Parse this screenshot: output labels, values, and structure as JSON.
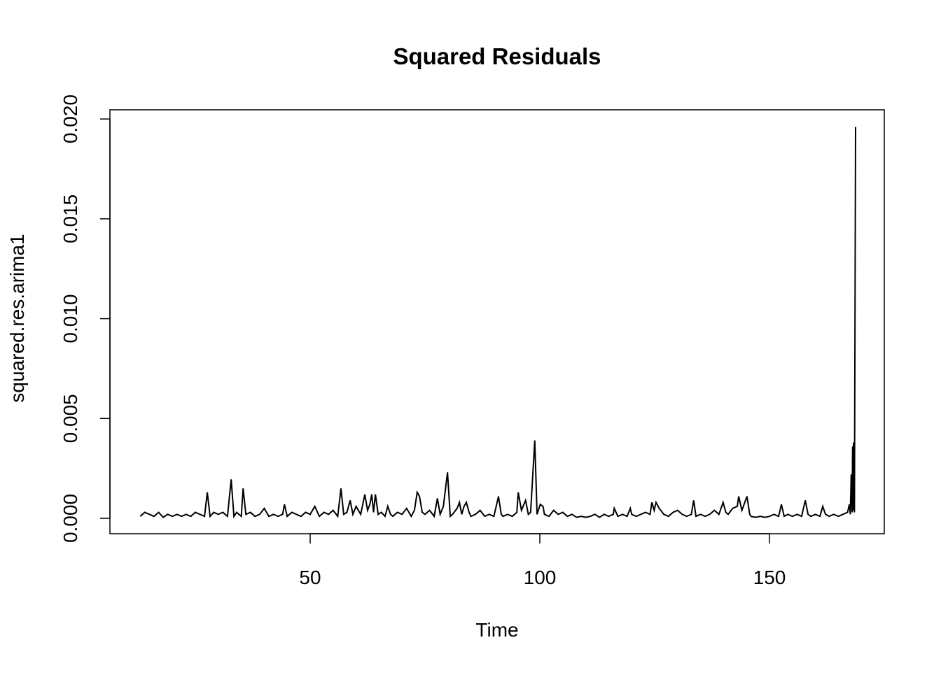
{
  "chart_data": {
    "type": "line",
    "title": "Squared Residuals",
    "x_label": "Time",
    "y_label": "squared.res.arima1",
    "color": "#000000",
    "x": [
      13,
      14,
      15,
      16,
      17,
      18,
      19,
      20,
      21,
      22,
      23,
      24,
      25,
      26,
      27,
      27.6,
      28.2,
      29,
      30,
      31,
      32,
      32.8,
      33.4,
      34,
      35,
      35.4,
      36,
      37,
      38,
      39,
      40,
      41,
      42,
      43,
      44,
      44.4,
      45,
      46,
      47,
      48,
      49,
      50,
      51,
      52,
      53,
      54,
      55,
      56,
      56.7,
      57.3,
      58,
      58.7,
      59.3,
      60,
      61,
      61.9,
      62.5,
      63,
      63.4,
      63.8,
      64.2,
      64.8,
      65.5,
      66.3,
      66.9,
      67.5,
      68,
      69,
      70,
      71,
      72,
      72.7,
      73.3,
      73.8,
      74.4,
      75,
      76,
      77,
      77.7,
      78.3,
      79,
      79.9,
      80.5,
      81,
      82,
      82.5,
      83,
      83.5,
      84,
      84.6,
      85,
      86,
      87,
      88,
      89,
      90,
      91,
      91.6,
      92,
      93,
      94,
      95,
      95.3,
      96,
      96.9,
      97.5,
      98,
      98.9,
      99.4,
      100.1,
      100.7,
      101,
      102,
      103,
      104,
      105,
      106,
      107,
      108,
      109,
      110,
      111,
      112,
      113,
      114,
      115,
      116,
      116.2,
      117,
      118,
      119,
      119.7,
      120,
      121,
      122,
      123,
      124,
      124.4,
      124.9,
      125.3,
      126,
      127,
      128,
      129,
      130,
      131,
      132,
      133,
      133.5,
      134,
      135,
      136,
      137,
      138,
      139,
      139.9,
      140.5,
      141,
      142,
      143,
      143.3,
      144,
      145.1,
      145.7,
      146,
      147,
      148,
      149,
      150,
      151,
      152,
      152.6,
      153.2,
      154,
      155,
      156,
      157,
      157.8,
      158.4,
      159,
      160,
      161,
      161.6,
      162.2,
      163,
      164,
      165,
      166,
      167,
      167.4,
      167.6,
      167.8,
      168,
      168.1,
      168.2,
      168.3,
      168.5,
      168.75
    ],
    "values": [
      0.0001,
      0.0003,
      0.0002,
      0.0001,
      0.0003,
      5e-05,
      0.0002,
      0.0001,
      0.0002,
      0.0001,
      0.0002,
      0.0001,
      0.0003,
      0.0002,
      0.0001,
      0.0013,
      0.0001,
      0.0003,
      0.0002,
      0.0003,
      0.0001,
      0.00195,
      0.0001,
      0.0003,
      0.0001,
      0.0015,
      0.0002,
      0.0003,
      0.0001,
      0.0002,
      0.0005,
      0.0001,
      0.0002,
      0.0001,
      0.0002,
      0.0007,
      0.0001,
      0.0003,
      0.0002,
      0.0001,
      0.0003,
      0.0002,
      0.0006,
      0.0001,
      0.0003,
      0.0002,
      0.0004,
      0.0001,
      0.0015,
      0.0002,
      0.0003,
      0.0009,
      0.0002,
      0.0006,
      0.0002,
      0.0012,
      0.0004,
      0.0007,
      0.0012,
      0.0003,
      0.0012,
      0.0002,
      0.0003,
      0.0001,
      0.0006,
      0.0002,
      0.0001,
      0.0003,
      0.0002,
      0.0005,
      0.0001,
      0.0004,
      0.0013,
      0.0011,
      0.0003,
      0.0002,
      0.0004,
      0.0001,
      0.001,
      0.0002,
      0.0006,
      0.0023,
      0.0001,
      0.0002,
      0.0005,
      0.0008,
      0.0002,
      0.0006,
      0.0008,
      0.0003,
      0.0001,
      0.0002,
      0.0004,
      0.0001,
      0.0002,
      0.0001,
      0.0011,
      0.0002,
      0.0001,
      0.0002,
      0.0001,
      0.0003,
      0.0013,
      0.0004,
      0.0009,
      0.0002,
      0.0003,
      0.0039,
      0.0002,
      0.0007,
      0.0006,
      0.0002,
      0.0001,
      0.0004,
      0.0002,
      0.0003,
      0.0001,
      0.0002,
      5e-05,
      0.0001,
      5e-05,
      0.0001,
      0.0002,
      5e-05,
      0.0002,
      0.0001,
      0.0002,
      0.0005,
      0.0001,
      0.0002,
      0.0001,
      0.0005,
      0.0002,
      0.0001,
      0.0002,
      0.0003,
      0.0002,
      0.0008,
      0.0004,
      0.0008,
      0.0005,
      0.0002,
      0.0001,
      0.0003,
      0.0004,
      0.0002,
      0.0001,
      0.0002,
      0.0009,
      0.0001,
      0.0002,
      0.0001,
      0.0002,
      0.0004,
      0.0002,
      0.0008,
      0.0003,
      0.0002,
      0.0005,
      0.0006,
      0.0011,
      0.0004,
      0.0011,
      0.0002,
      0.0001,
      5e-05,
      0.0001,
      5e-05,
      0.0001,
      0.0002,
      0.0001,
      0.0007,
      0.0001,
      0.0002,
      0.0001,
      0.0002,
      0.0001,
      0.0009,
      0.0002,
      0.0001,
      0.0002,
      0.0001,
      0.0006,
      0.0002,
      0.0001,
      0.0002,
      0.0001,
      0.0002,
      0.0003,
      0.0007,
      0.0002,
      0.0022,
      0.0003,
      0.0036,
      0.0004,
      0.0038,
      0.0003,
      0.0196
    ],
    "xlim": [
      6.4,
      175.0
    ],
    "ylim": [
      -0.00077,
      0.02046
    ],
    "xticks": [
      50,
      100,
      150
    ],
    "yticks": [
      {
        "value": 0,
        "label": "0.000"
      },
      {
        "value": 0.005,
        "label": "0.005"
      },
      {
        "value": 0.01,
        "label": "0.010"
      },
      {
        "value": 0.015,
        "label": "0.015"
      },
      {
        "value": 0.02,
        "label": "0.020"
      }
    ]
  }
}
